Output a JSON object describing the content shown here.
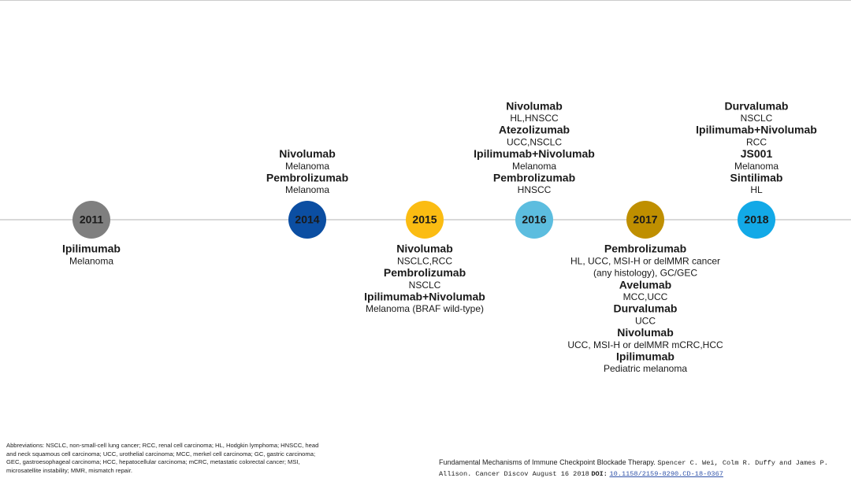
{
  "timeline": {
    "years": [
      {
        "year": "2011",
        "color": "#7f7f7f",
        "side": "below",
        "entries": [
          {
            "drug": "Ipilimumab",
            "indications": [
              "Melanoma"
            ]
          }
        ]
      },
      {
        "year": "2014",
        "color": "#0b4ea2",
        "side": "above",
        "entries": [
          {
            "drug": "Nivolumab",
            "indications": [
              "Melanoma"
            ]
          },
          {
            "drug": "Pembrolizumab",
            "indications": [
              "Melanoma"
            ]
          }
        ]
      },
      {
        "year": "2015",
        "color": "#fbbc12",
        "side": "below",
        "entries": [
          {
            "drug": "Nivolumab",
            "indications": [
              "NSCLC,RCC"
            ]
          },
          {
            "drug": "Pembrolizumab",
            "indications": [
              "NSCLC"
            ]
          },
          {
            "drug": "Ipilimumab+Nivolumab",
            "indications": [
              "Melanoma (BRAF wild-type)"
            ]
          }
        ]
      },
      {
        "year": "2016",
        "color": "#5cbddf",
        "side": "above",
        "entries": [
          {
            "drug": "Nivolumab",
            "indications": [
              "HL,HNSCC"
            ]
          },
          {
            "drug": "Atezolizumab",
            "indications": [
              "UCC,NSCLC"
            ]
          },
          {
            "drug": "Ipilimumab+Nivolumab",
            "indications": [
              "Melanoma"
            ]
          },
          {
            "drug": "Pembrolizumab",
            "indications": [
              "HNSCC"
            ]
          }
        ]
      },
      {
        "year": "2017",
        "color": "#bf8f00",
        "side": "below",
        "entries": [
          {
            "drug": "Pembrolizumab",
            "indications": [
              "HL, UCC, MSI-H or delMMR cancer",
              "(any histology), GC/GEC"
            ]
          },
          {
            "drug": "Avelumab",
            "indications": [
              "MCC,UCC"
            ]
          },
          {
            "drug": "Durvalumab",
            "indications": [
              "UCC"
            ]
          },
          {
            "drug": "Nivolumab",
            "indications": [
              "UCC, MSI-H or delMMR mCRC,HCC"
            ]
          },
          {
            "drug": "Ipilimumab",
            "indications": [
              "Pediatric melanoma"
            ]
          }
        ]
      },
      {
        "year": "2018",
        "color": "#12a9e7",
        "side": "above",
        "entries": [
          {
            "drug": "Durvalumab",
            "indications": [
              "NSCLC"
            ]
          },
          {
            "drug": "Ipilimumab+Nivolumab",
            "indications": [
              "RCC"
            ]
          },
          {
            "drug": "JS001",
            "indications": [
              "Melanoma"
            ]
          },
          {
            "drug": "Sintilimab",
            "indications": [
              "HL"
            ]
          }
        ]
      }
    ]
  },
  "footer": {
    "abbreviations": "Abbreviations: NSCLC, non-small-cell lung cancer; RCC, renal cell carcinoma; HL, Hodgkin lymphoma; HNSCC, head and neck squamous cell carcinoma; UCC, urothelial carcinoma; MCC, merkel cell carcinoma; GC, gastric carcinoma; GEC, gastroesophageal carcinoma; HCC, hepatocellular carcinoma; mCRC, metastatic colorectal cancer; MSI, microsatellite instability; MMR, mismatch repair.",
    "citation": {
      "title": "Fundamental Mechanisms of Immune Checkpoint Blockade Therapy.",
      "authors": "Spencer C. Wei, Colm R. Duffy and James P. Allison. Cancer Discov August 16 2018",
      "doi_label": "DOI:",
      "doi": "10.1158/2159-8290.CD-18-0367"
    }
  }
}
